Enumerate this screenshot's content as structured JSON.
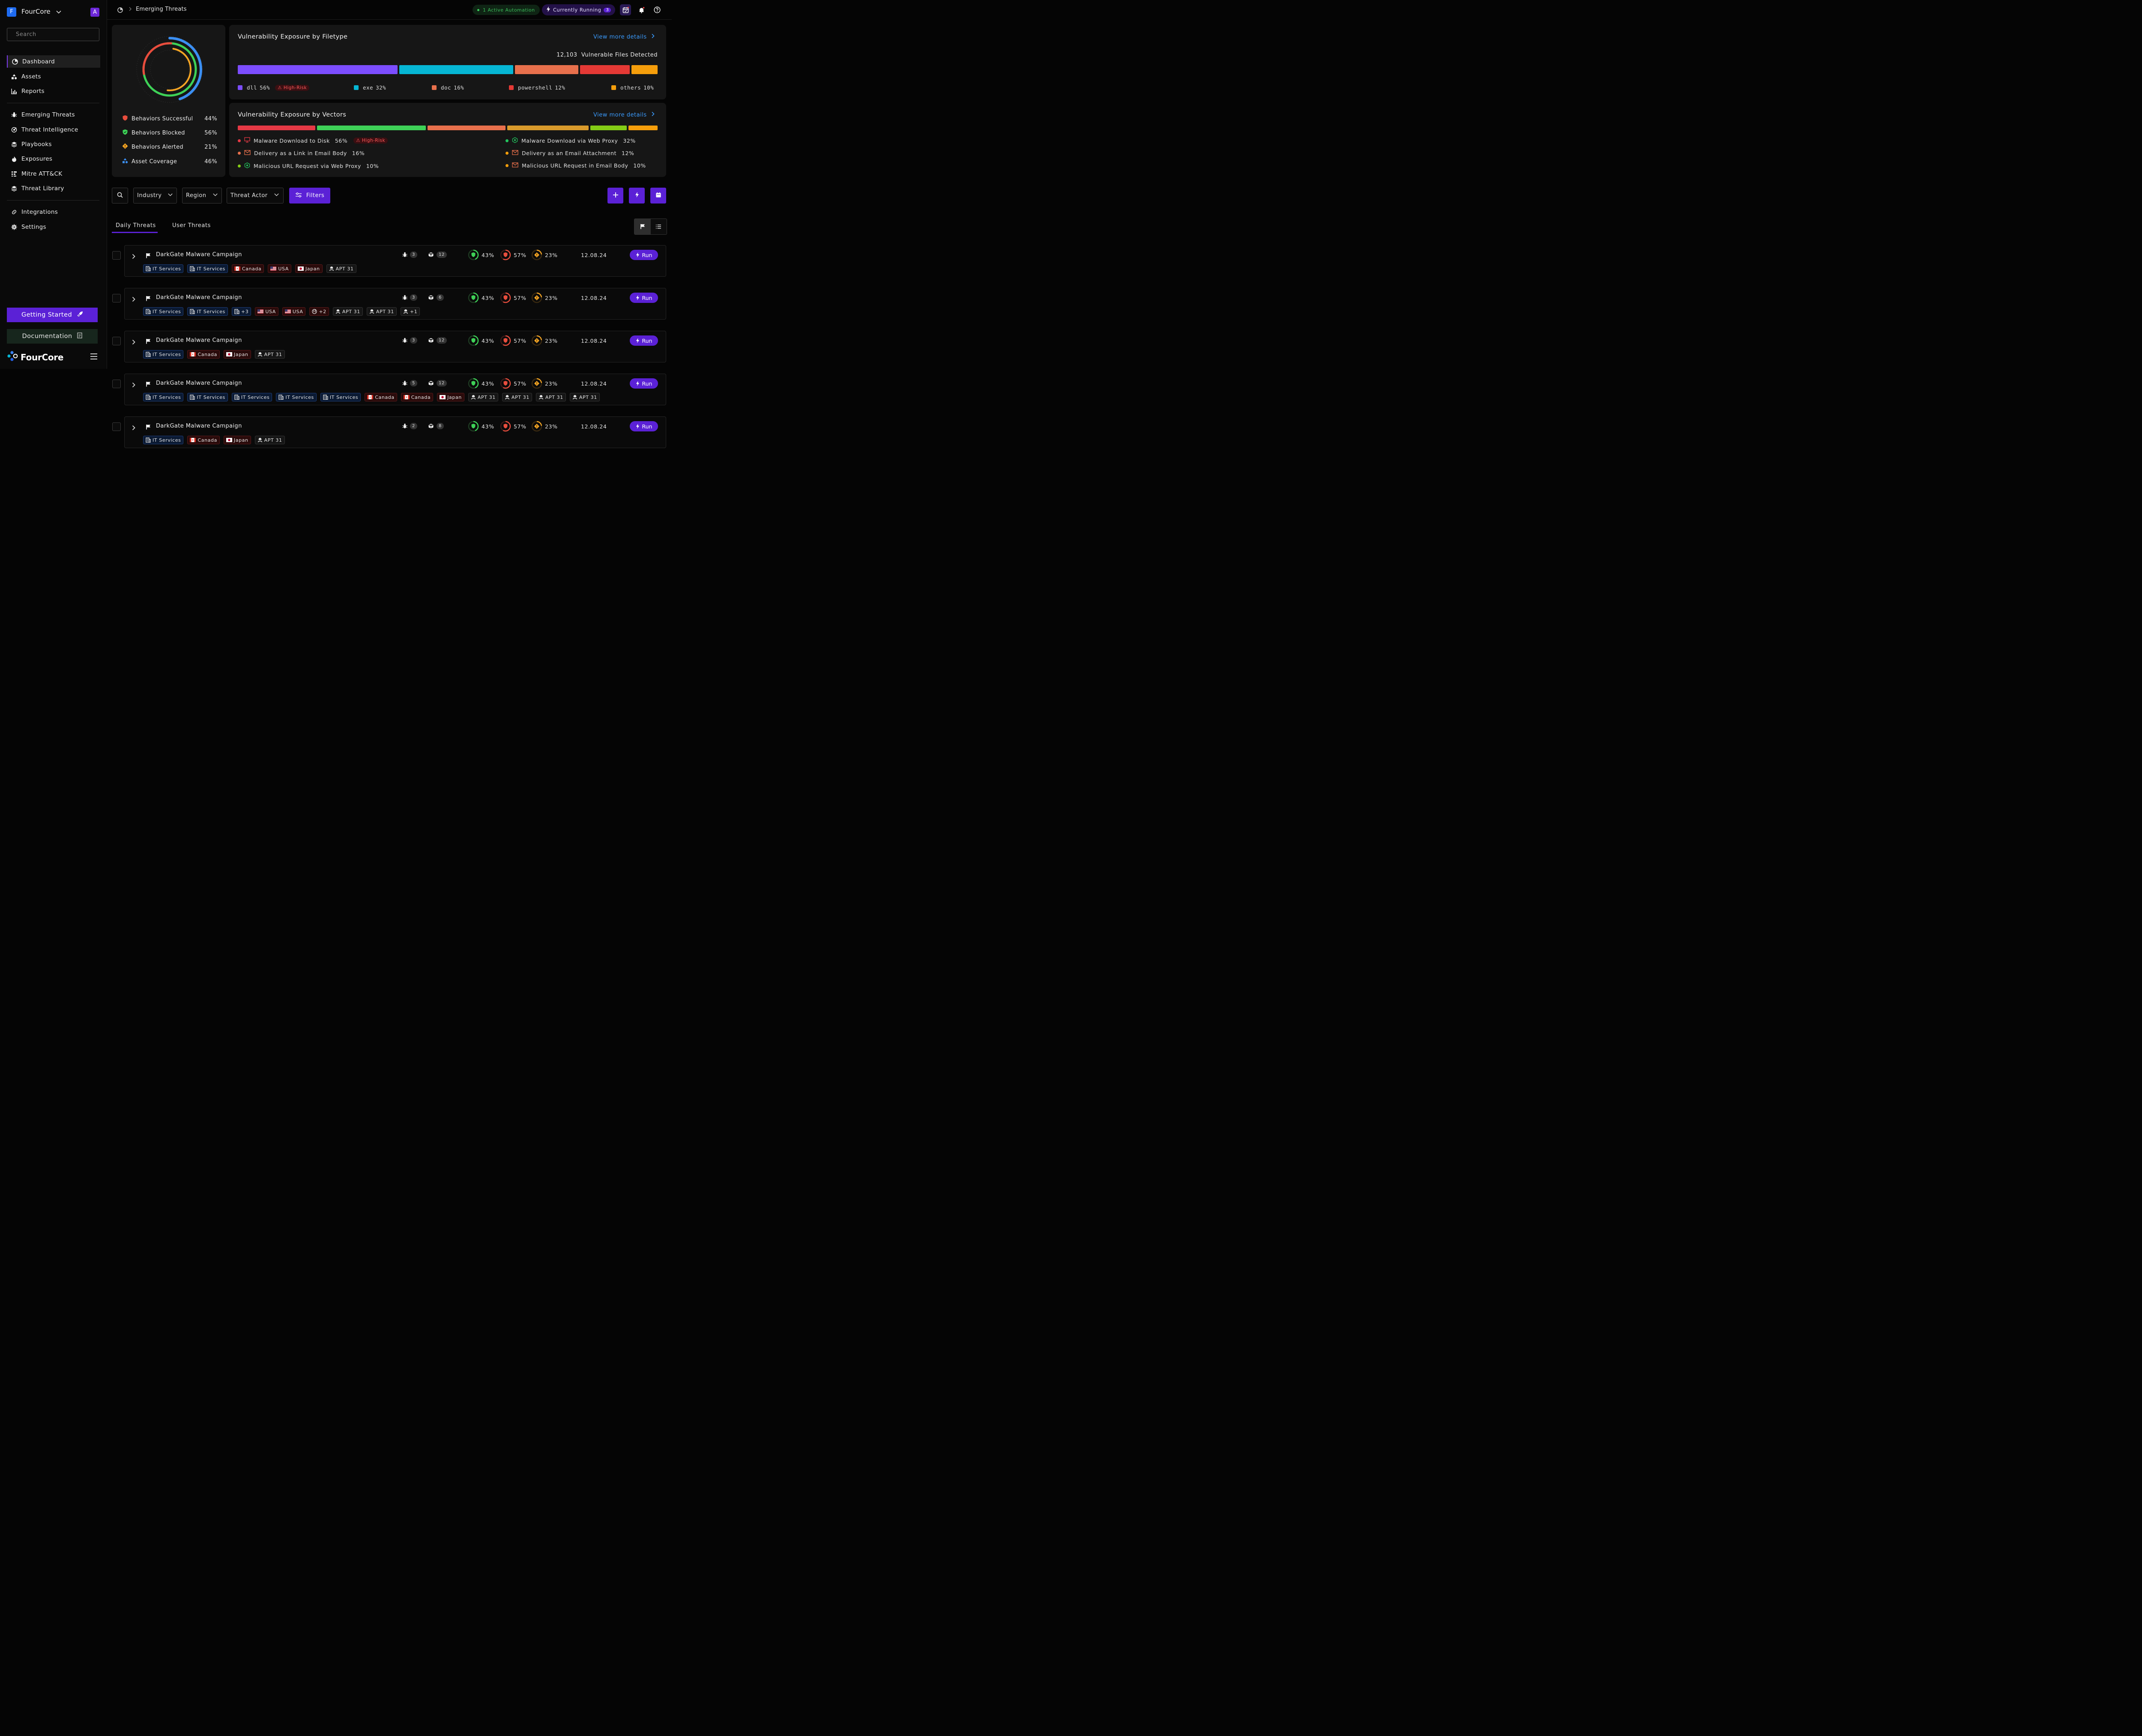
{
  "workspace": {
    "initial": "F",
    "name": "FourCore",
    "user_initial": "A"
  },
  "sidebar": {
    "search_placeholder": "Search",
    "primary": [
      "Dashboard",
      "Assets",
      "Reports"
    ],
    "threats": [
      "Emerging Threats",
      "Threat Intelligence",
      "Playbooks",
      "Exposures",
      "Mitre ATT&CK",
      "Threat Library"
    ],
    "config": [
      "Integrations",
      "Settings"
    ],
    "getting_started": "Getting Started",
    "documentation": "Documentation",
    "logo": "FourCore"
  },
  "topbar": {
    "breadcrumb": "Emerging Threats",
    "automation": "1 Active Automation",
    "running": "Currently Running",
    "running_count": "3"
  },
  "summary": {
    "stats": [
      {
        "label": "Behaviors Successful",
        "pct": "44%"
      },
      {
        "label": "Behaviors Blocked",
        "pct": "56%"
      },
      {
        "label": "Behaviors Alerted",
        "pct": "21%"
      },
      {
        "label": "Asset Coverage",
        "pct": "46%"
      }
    ]
  },
  "filetype": {
    "title": "Vulnerability Exposure by Filetype",
    "more": "View more details",
    "count": "12,103",
    "count_label": "Vulnerable Files Detected",
    "high_risk": "High-Risk",
    "items": [
      {
        "name": "dll",
        "pct": "56%",
        "value": 56,
        "color": "#7c4dff"
      },
      {
        "name": "exe",
        "pct": "32%",
        "value": 32,
        "color": "#06b6d4"
      },
      {
        "name": "doc",
        "pct": "16%",
        "value": 16,
        "color": "#e8704c"
      },
      {
        "name": "powershell",
        "pct": "12%",
        "value": 12,
        "color": "#e53935"
      },
      {
        "name": "others",
        "pct": "10%",
        "value": 10,
        "color": "#f59e0b"
      }
    ]
  },
  "vectors": {
    "title": "Vulnerability Exposure by Vectors",
    "more": "View more details",
    "high_risk": "High-Risk",
    "items": [
      {
        "name": "Malware Download to Disk",
        "pct": "56%",
        "color": "#e53945"
      },
      {
        "name": "Malware Download via Web Proxy",
        "pct": "32%",
        "color": "#22c55e"
      },
      {
        "name": "Delivery as a Link in Email Body",
        "pct": "16%",
        "color": "#e8704c"
      },
      {
        "name": "Delivery as an Email Attachment",
        "pct": "12%",
        "color": "#d99a2b"
      },
      {
        "name": "Malicious URL Request via Web Proxy",
        "pct": "10%",
        "color": "#84cc16"
      },
      {
        "name": "Malicious URL Request in Email Body",
        "pct": "10%",
        "color": "#f59e0b"
      }
    ]
  },
  "filters": {
    "industry": "Industry",
    "region": "Region",
    "actor": "Threat Actor",
    "filters": "Filters"
  },
  "tabs": [
    "Daily Threats",
    "User Threats"
  ],
  "rows": [
    {
      "title": "DarkGate Malware Campaign",
      "bugs": "3",
      "assets": "12",
      "m1": "43%",
      "m2": "57%",
      "m3": "23%",
      "date": "12.08.24",
      "run": "Run",
      "tags": [
        {
          "k": "ind",
          "t": "IT Services"
        },
        {
          "k": "ind",
          "t": "IT Services"
        },
        {
          "k": "cty",
          "f": "ca",
          "t": "Canada"
        },
        {
          "k": "cty",
          "f": "us",
          "t": "USA"
        },
        {
          "k": "cty",
          "f": "jp",
          "t": "Japan"
        },
        {
          "k": "apt",
          "t": "APT 31"
        }
      ]
    },
    {
      "title": "DarkGate Malware Campaign",
      "bugs": "3",
      "assets": "6",
      "m1": "43%",
      "m2": "57%",
      "m3": "23%",
      "date": "12.08.24",
      "run": "Run",
      "tags": [
        {
          "k": "ind",
          "t": "IT Services"
        },
        {
          "k": "ind",
          "t": "IT Services"
        },
        {
          "k": "ind",
          "t": "+3"
        },
        {
          "k": "cty",
          "f": "us",
          "t": "USA"
        },
        {
          "k": "cty",
          "f": "us",
          "t": "USA"
        },
        {
          "k": "cty",
          "f": "globe",
          "t": "+2"
        },
        {
          "k": "apt",
          "t": "APT 31"
        },
        {
          "k": "apt",
          "t": "APT 31"
        },
        {
          "k": "apt",
          "t": "+1"
        }
      ]
    },
    {
      "title": "DarkGate Malware Campaign",
      "bugs": "3",
      "assets": "12",
      "m1": "43%",
      "m2": "57%",
      "m3": "23%",
      "date": "12.08.24",
      "run": "Run",
      "tags": [
        {
          "k": "ind",
          "t": "IT Services"
        },
        {
          "k": "cty",
          "f": "ca",
          "t": "Canada"
        },
        {
          "k": "cty",
          "f": "jp",
          "t": "Japan"
        },
        {
          "k": "apt",
          "t": "APT 31"
        }
      ]
    },
    {
      "title": "DarkGate Malware Campaign",
      "bugs": "5",
      "assets": "12",
      "m1": "43%",
      "m2": "57%",
      "m3": "23%",
      "date": "12.08.24",
      "run": "Run",
      "tags": [
        {
          "k": "ind",
          "t": "IT Services"
        },
        {
          "k": "ind",
          "t": "IT Services"
        },
        {
          "k": "ind",
          "t": "IT Services"
        },
        {
          "k": "ind",
          "t": "IT Services"
        },
        {
          "k": "ind",
          "t": "IT Services"
        },
        {
          "k": "cty",
          "f": "ca",
          "t": "Canada"
        },
        {
          "k": "cty",
          "f": "ca",
          "t": "Canada"
        },
        {
          "k": "cty",
          "f": "jp",
          "t": "Japan"
        },
        {
          "k": "apt",
          "t": "APT 31"
        },
        {
          "k": "apt",
          "t": "APT 31"
        },
        {
          "k": "apt",
          "t": "APT 31"
        },
        {
          "k": "apt",
          "t": "APT 31"
        }
      ]
    },
    {
      "title": "DarkGate Malware Campaign",
      "bugs": "2",
      "assets": "8",
      "m1": "43%",
      "m2": "57%",
      "m3": "23%",
      "date": "12.08.24",
      "run": "Run",
      "tags": [
        {
          "k": "ind",
          "t": "IT Services"
        },
        {
          "k": "cty",
          "f": "ca",
          "t": "Canada"
        },
        {
          "k": "cty",
          "f": "jp",
          "t": "Japan"
        },
        {
          "k": "apt",
          "t": "APT 31"
        }
      ]
    }
  ]
}
